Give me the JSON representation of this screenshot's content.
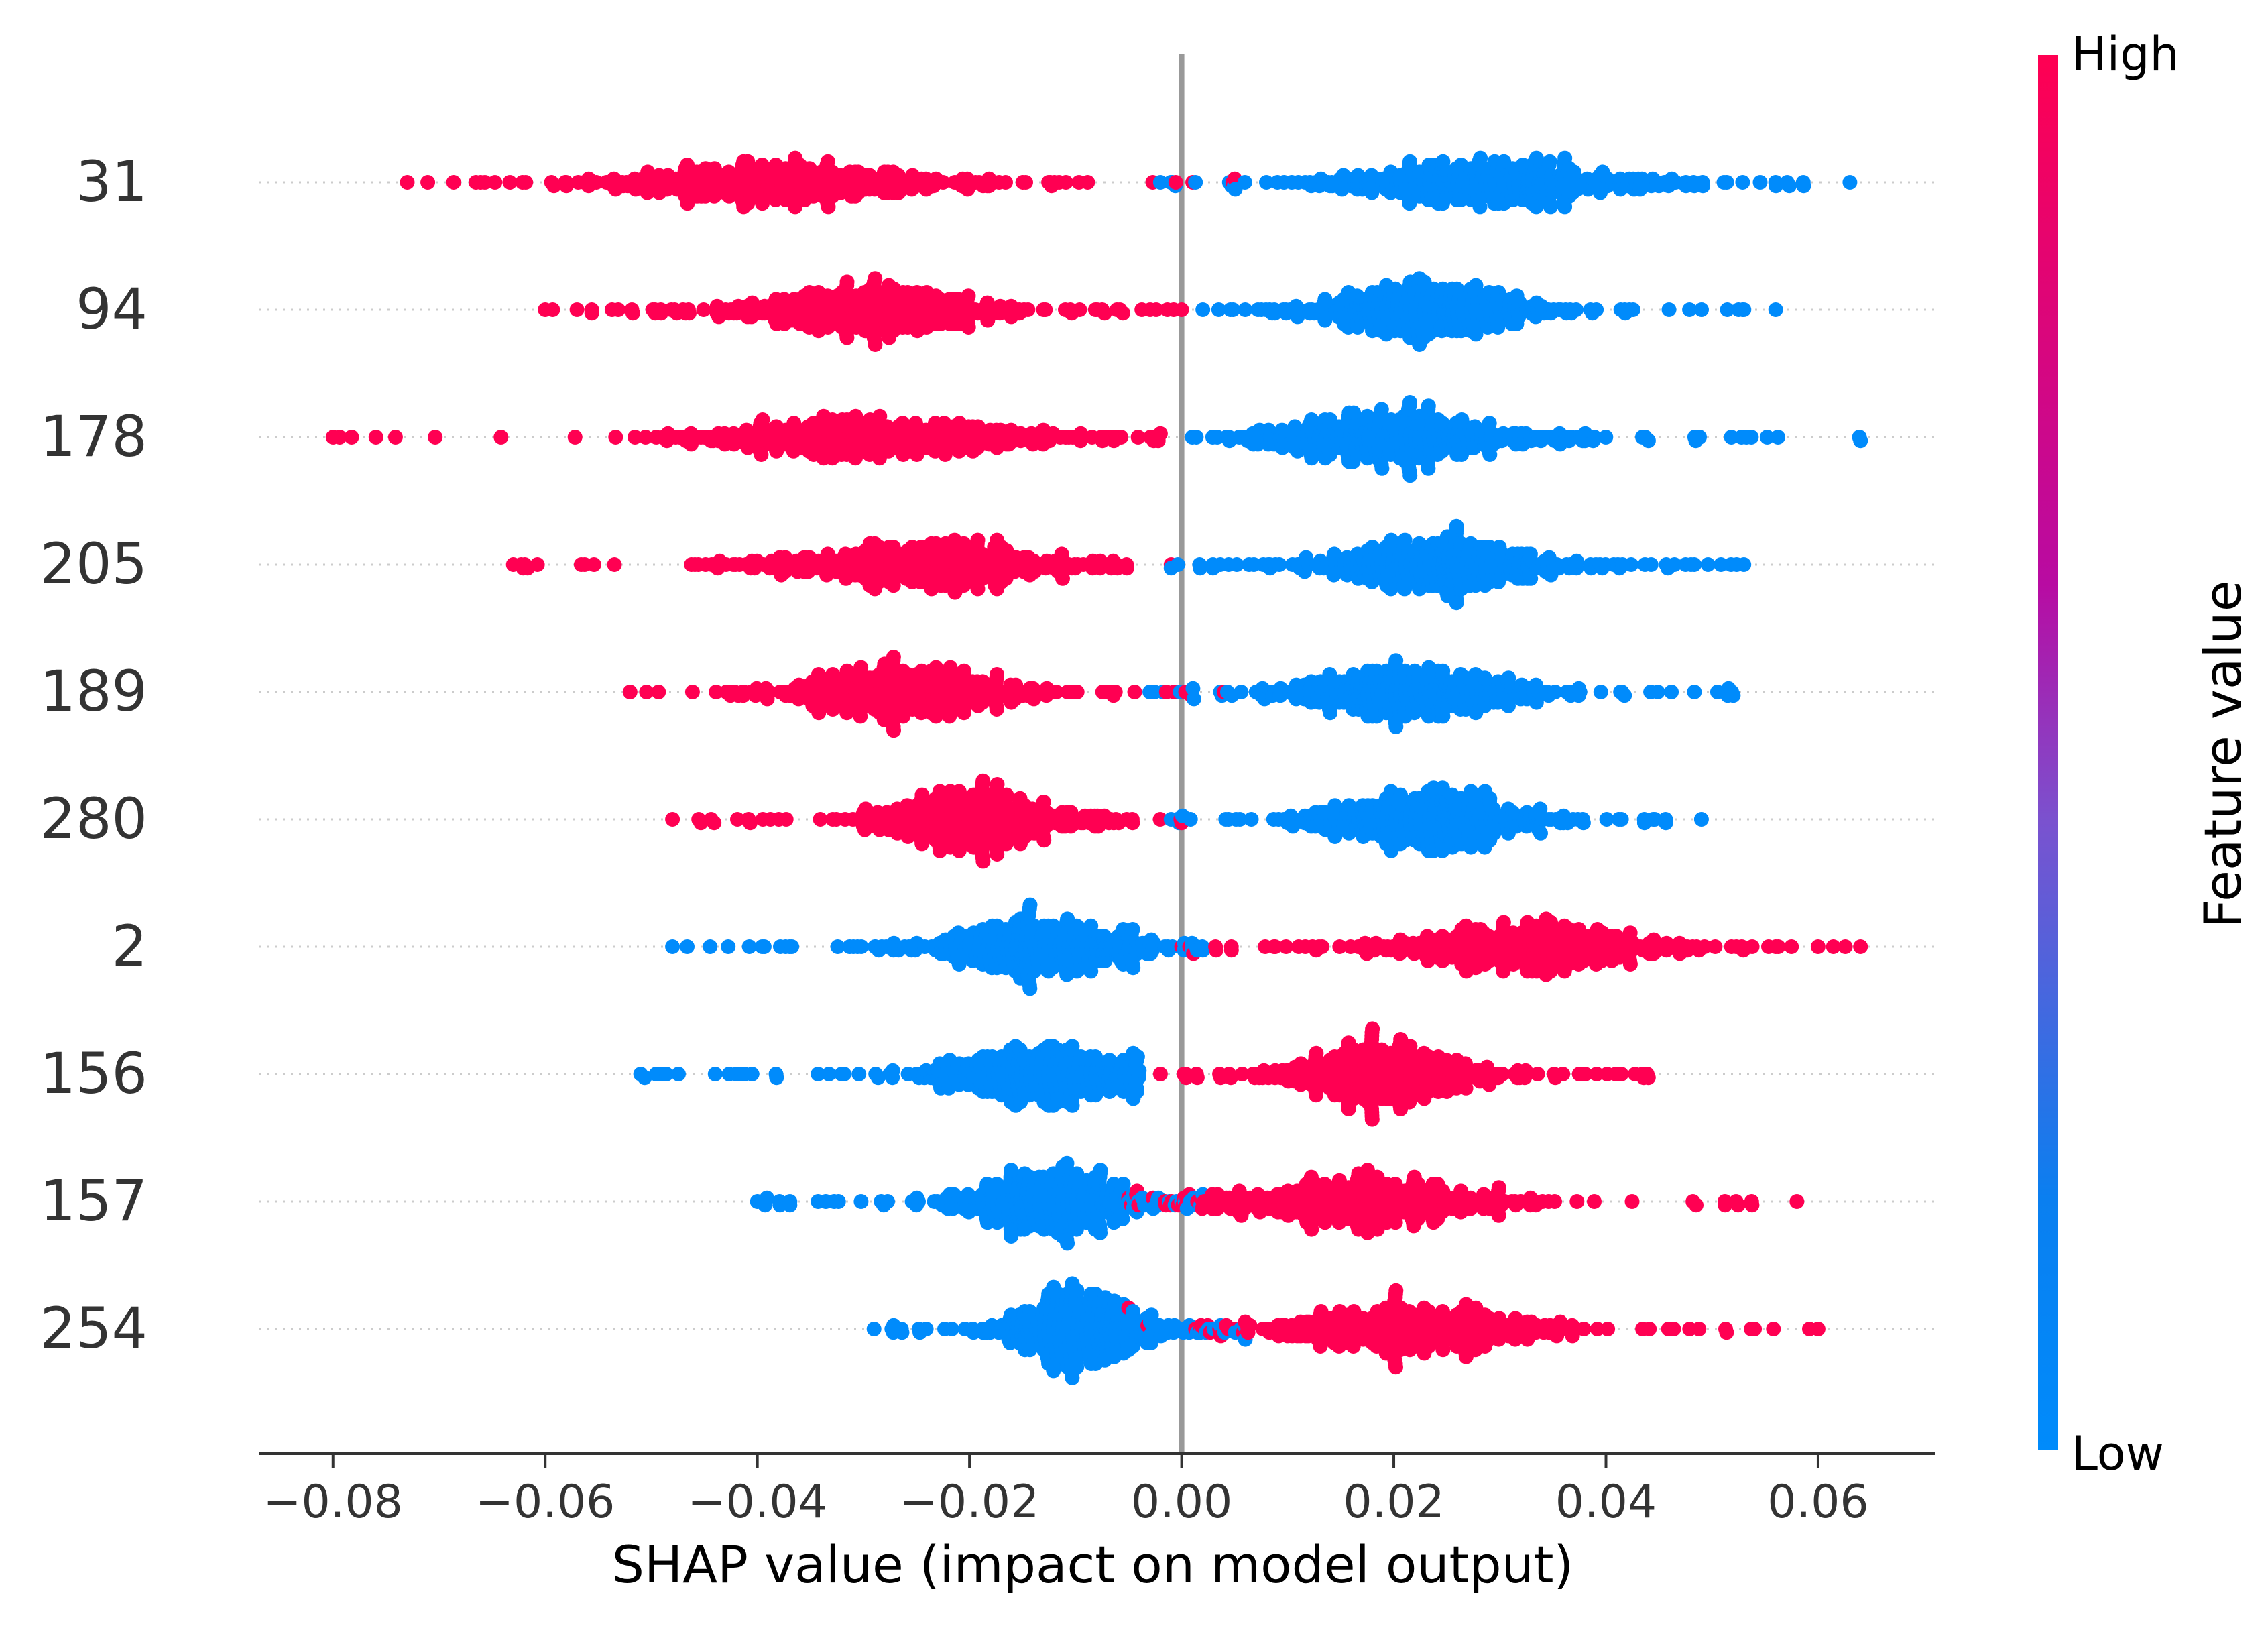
{
  "chart_data": {
    "type": "scatter",
    "subtype": "shap-beeswarm-summary",
    "title": "",
    "xlabel": "SHAP value (impact on model output)",
    "ylabel": "",
    "xlim": [
      -0.087,
      0.071
    ],
    "xticks": [
      -0.08,
      -0.06,
      -0.04,
      -0.02,
      0.0,
      0.02,
      0.04,
      0.06
    ],
    "xtick_labels": [
      "−0.08",
      "−0.06",
      "−0.04",
      "−0.02",
      "0.00",
      "0.02",
      "0.04",
      "0.06"
    ],
    "zero_line": 0.0,
    "grid": false,
    "features": [
      {
        "name": "31",
        "high_side": "negative",
        "high_range": [
          -0.073,
          0.005
        ],
        "low_range": [
          -0.002,
          0.063
        ],
        "high_peaks": [
          -0.04,
          -0.036
        ],
        "low_peaks": [
          0.027,
          0.031
        ],
        "n": 1000
      },
      {
        "name": "94",
        "high_side": "negative",
        "high_range": [
          -0.06,
          0.0
        ],
        "low_range": [
          0.002,
          0.056
        ],
        "high_peaks": [
          -0.032,
          -0.028
        ],
        "low_peaks": [
          0.022,
          0.026
        ],
        "n": 1000
      },
      {
        "name": "178",
        "high_side": "negative",
        "high_range": [
          -0.08,
          -0.002
        ],
        "low_range": [
          0.001,
          0.064
        ],
        "high_peaks": [
          -0.032,
          -0.026
        ],
        "low_peaks": [
          0.016,
          0.025
        ],
        "n": 1000
      },
      {
        "name": "205",
        "high_side": "negative",
        "high_range": [
          -0.063,
          -0.001
        ],
        "low_range": [
          -0.001,
          0.053
        ],
        "high_peaks": [
          -0.026,
          -0.023
        ],
        "low_peaks": [
          0.022,
          0.026
        ],
        "n": 1000
      },
      {
        "name": "189",
        "high_side": "negative",
        "high_range": [
          -0.052,
          0.004
        ],
        "low_range": [
          -0.003,
          0.052
        ],
        "high_peaks": [
          -0.029,
          -0.022
        ],
        "low_peaks": [
          0.018,
          0.025
        ],
        "n": 1000
      },
      {
        "name": "280",
        "high_side": "negative",
        "high_range": [
          -0.048,
          0.0
        ],
        "low_range": [
          -0.001,
          0.049
        ],
        "high_peaks": [
          -0.024,
          -0.015
        ],
        "low_peaks": [
          0.02,
          0.026
        ],
        "n": 1000
      },
      {
        "name": "2",
        "high_side": "positive",
        "high_range": [
          0.0,
          0.064
        ],
        "low_range": [
          -0.048,
          0.002
        ],
        "high_peaks": [
          0.031,
          0.033
        ],
        "low_peaks": [
          -0.014,
          -0.012
        ],
        "n": 1000
      },
      {
        "name": "156",
        "high_side": "positive",
        "high_range": [
          -0.002,
          0.044
        ],
        "low_range": [
          -0.051,
          -0.004
        ],
        "high_peaks": [
          0.018,
          0.02
        ],
        "low_peaks": [
          -0.014,
          -0.012
        ],
        "n": 1000
      },
      {
        "name": "157",
        "high_side": "positive",
        "high_range": [
          -0.005,
          0.058
        ],
        "low_range": [
          -0.04,
          0.002
        ],
        "high_peaks": [
          0.015,
          0.018
        ],
        "low_peaks": [
          -0.015,
          -0.01
        ],
        "n": 1000
      },
      {
        "name": "254",
        "high_side": "positive",
        "high_range": [
          -0.005,
          0.06
        ],
        "low_range": [
          -0.029,
          0.006
        ],
        "high_peaks": [
          0.02,
          0.024
        ],
        "low_peaks": [
          -0.01,
          -0.009
        ],
        "n": 1000
      }
    ],
    "colorbar": {
      "label": "Feature value",
      "high_label": "High",
      "low_label": "Low",
      "high_color": "#ff0052",
      "mid_color": "#b80ba2",
      "low_color": "#008bfb"
    },
    "colors": {
      "zero_line": "#999999",
      "axis": "#333333",
      "tick_label": "#333333",
      "row_guide": "#cccccc"
    }
  }
}
